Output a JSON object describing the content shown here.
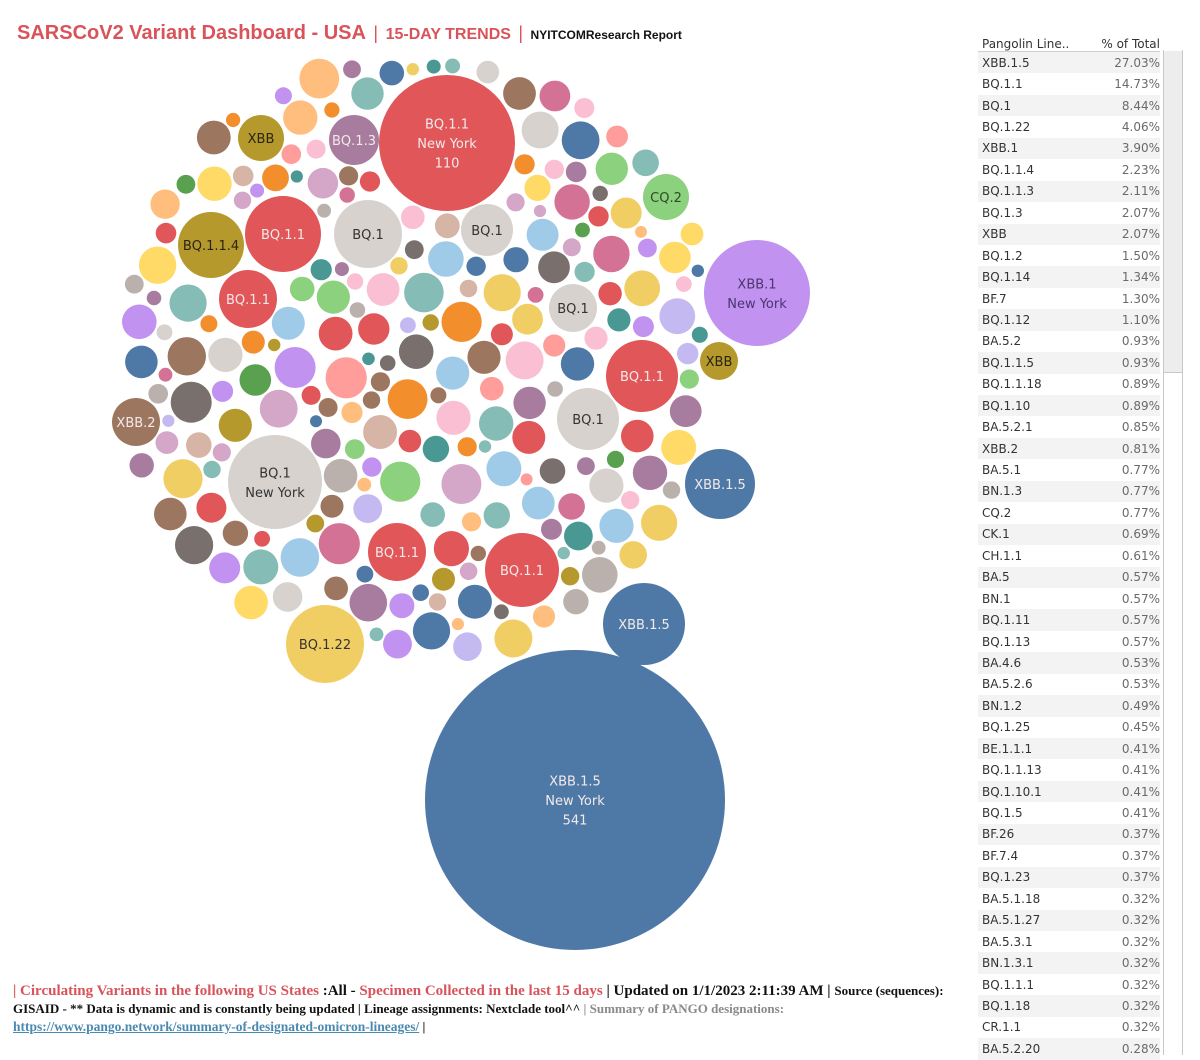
{
  "header": {
    "title_main": "SARSCoV2 Variant Dashboard - USA",
    "separator": "|",
    "title_trends": "15-DAY TRENDS",
    "title_report": "NYITCOMResearch Report"
  },
  "table": {
    "col_lineage": "Pangolin Line..",
    "col_percent": "% of Total",
    "rows": [
      {
        "lineage": "XBB.1.5",
        "percent": "27.03%"
      },
      {
        "lineage": "BQ.1.1",
        "percent": "14.73%"
      },
      {
        "lineage": "BQ.1",
        "percent": "8.44%"
      },
      {
        "lineage": "BQ.1.22",
        "percent": "4.06%"
      },
      {
        "lineage": "XBB.1",
        "percent": "3.90%"
      },
      {
        "lineage": "BQ.1.1.4",
        "percent": "2.23%"
      },
      {
        "lineage": "BQ.1.1.3",
        "percent": "2.11%"
      },
      {
        "lineage": "BQ.1.3",
        "percent": "2.07%"
      },
      {
        "lineage": "XBB",
        "percent": "2.07%"
      },
      {
        "lineage": "BQ.1.2",
        "percent": "1.50%"
      },
      {
        "lineage": "BQ.1.14",
        "percent": "1.34%"
      },
      {
        "lineage": "BF.7",
        "percent": "1.30%"
      },
      {
        "lineage": "BQ.1.12",
        "percent": "1.10%"
      },
      {
        "lineage": "BA.5.2",
        "percent": "0.93%"
      },
      {
        "lineage": "BQ.1.1.5",
        "percent": "0.93%"
      },
      {
        "lineage": "BQ.1.1.18",
        "percent": "0.89%"
      },
      {
        "lineage": "BQ.1.10",
        "percent": "0.89%"
      },
      {
        "lineage": "BA.5.2.1",
        "percent": "0.85%"
      },
      {
        "lineage": "XBB.2",
        "percent": "0.81%"
      },
      {
        "lineage": "BA.5.1",
        "percent": "0.77%"
      },
      {
        "lineage": "BN.1.3",
        "percent": "0.77%"
      },
      {
        "lineage": "CQ.2",
        "percent": "0.77%"
      },
      {
        "lineage": "CK.1",
        "percent": "0.69%"
      },
      {
        "lineage": "CH.1.1",
        "percent": "0.61%"
      },
      {
        "lineage": "BA.5",
        "percent": "0.57%"
      },
      {
        "lineage": "BN.1",
        "percent": "0.57%"
      },
      {
        "lineage": "BQ.1.11",
        "percent": "0.57%"
      },
      {
        "lineage": "BQ.1.13",
        "percent": "0.57%"
      },
      {
        "lineage": "BA.4.6",
        "percent": "0.53%"
      },
      {
        "lineage": "BA.5.2.6",
        "percent": "0.53%"
      },
      {
        "lineage": "BN.1.2",
        "percent": "0.49%"
      },
      {
        "lineage": "BQ.1.25",
        "percent": "0.45%"
      },
      {
        "lineage": "BE.1.1.1",
        "percent": "0.41%"
      },
      {
        "lineage": "BQ.1.1.13",
        "percent": "0.41%"
      },
      {
        "lineage": "BQ.1.10.1",
        "percent": "0.41%"
      },
      {
        "lineage": "BQ.1.5",
        "percent": "0.41%"
      },
      {
        "lineage": "BF.26",
        "percent": "0.37%"
      },
      {
        "lineage": "BF.7.4",
        "percent": "0.37%"
      },
      {
        "lineage": "BQ.1.23",
        "percent": "0.37%"
      },
      {
        "lineage": "BA.5.1.18",
        "percent": "0.32%"
      },
      {
        "lineage": "BA.5.1.27",
        "percent": "0.32%"
      },
      {
        "lineage": "BA.5.3.1",
        "percent": "0.32%"
      },
      {
        "lineage": "BN.1.3.1",
        "percent": "0.32%"
      },
      {
        "lineage": "BQ.1.1.1",
        "percent": "0.32%"
      },
      {
        "lineage": "BQ.1.18",
        "percent": "0.32%"
      },
      {
        "lineage": "CR.1.1",
        "percent": "0.32%"
      },
      {
        "lineage": "BA.5.2.20",
        "percent": "0.28%"
      }
    ]
  },
  "chart_data": {
    "type": "packed-bubble",
    "title": "SARSCoV2 Variant Dashboard - USA",
    "size_measure": "sequence count",
    "color_by": "Pangolin Lineage",
    "colors": {
      "XBB.1.5": "#4e79a7",
      "BQ.1.1": "#e15759",
      "BQ.1": "#d7d2ce",
      "BQ.1.22": "#f1ce63",
      "XBB.1": "#c192ef",
      "BQ.1.1.4": "#b6992d",
      "XBB": "#b6992d",
      "BQ.1.3": "#a87c9f",
      "CQ.2": "#8cd17d",
      "XBB.2": "#9d7660"
    },
    "labeled_bubbles": [
      {
        "lineage": "XBB.1.5",
        "state": "New York",
        "value": 541,
        "label_lines": [
          "XBB.1.5",
          "New York",
          "541"
        ]
      },
      {
        "lineage": "BQ.1.1",
        "state": "New York",
        "value": 110,
        "label_lines": [
          "BQ.1.1",
          "New York",
          "110"
        ]
      },
      {
        "lineage": "XBB.1",
        "state": "New York",
        "label_lines": [
          "XBB.1",
          "New York"
        ]
      },
      {
        "lineage": "BQ.1",
        "state": "New York",
        "label_lines": [
          "BQ.1",
          "New York"
        ]
      },
      {
        "lineage": "XBB.1.5",
        "label_lines": [
          "XBB.1.5"
        ]
      },
      {
        "lineage": "XBB.1.5",
        "label_lines": [
          "XBB.1.5"
        ]
      },
      {
        "lineage": "BQ.1.22",
        "label_lines": [
          "BQ.1.22"
        ]
      },
      {
        "lineage": "BQ.1.1",
        "label_lines": [
          "BQ.1.1"
        ]
      },
      {
        "lineage": "BQ.1.1",
        "label_lines": [
          "BQ.1.1"
        ]
      },
      {
        "lineage": "BQ.1.1",
        "label_lines": [
          "BQ.1.1"
        ]
      },
      {
        "lineage": "BQ.1.1",
        "label_lines": [
          "BQ.1.1"
        ]
      },
      {
        "lineage": "BQ.1.1",
        "label_lines": [
          "BQ.1.1"
        ]
      },
      {
        "lineage": "BQ.1",
        "label_lines": [
          "BQ.1"
        ]
      },
      {
        "lineage": "BQ.1",
        "label_lines": [
          "BQ.1"
        ]
      },
      {
        "lineage": "BQ.1",
        "label_lines": [
          "BQ.1"
        ]
      },
      {
        "lineage": "BQ.1",
        "label_lines": [
          "BQ.1"
        ]
      },
      {
        "lineage": "BQ.1.1.4",
        "label_lines": [
          "BQ.1.1.4"
        ]
      },
      {
        "lineage": "BQ.1.3",
        "label_lines": [
          "BQ.1.3"
        ]
      },
      {
        "lineage": "XBB",
        "label_lines": [
          "XBB"
        ]
      },
      {
        "lineage": "XBB",
        "label_lines": [
          "XBB"
        ]
      },
      {
        "lineage": "CQ.2",
        "label_lines": [
          "CQ.2"
        ]
      },
      {
        "lineage": "XBB.2",
        "label_lines": [
          "XBB.2"
        ]
      }
    ],
    "filler_palette": [
      "#4e79a7",
      "#e15759",
      "#d7d2ce",
      "#f1ce63",
      "#c192ef",
      "#b6992d",
      "#a87c9f",
      "#8cd17d",
      "#9d7660",
      "#499894",
      "#86bcb6",
      "#ff9d9a",
      "#fabfd2",
      "#d4a6c8",
      "#f28e2b",
      "#ffbe7d",
      "#79706e",
      "#bab0ac",
      "#59a14f",
      "#a0cbe8",
      "#d37295",
      "#ffda66",
      "#d7b5a6",
      "#c4b9f0"
    ]
  },
  "footer": {
    "p1_red": "| Circulating Variants in the following US States",
    "p1_all": " :All - ",
    "p1_red2": "Specimen Collected in the last 15 days",
    "p1_updated": " | Updated on 1/1/2023 2:11:39 AM | ",
    "p1_source": "Source (sequences): GISAID - ** Data is dynamic and is constantly being updated | Lineage assignments: Nextclade tool^^ ",
    "p1_summary": "| Summary of PANGO designations:",
    "link": "https://www.pango.network/summary-of-designated-omicron-lineages/",
    "trail": " |"
  }
}
